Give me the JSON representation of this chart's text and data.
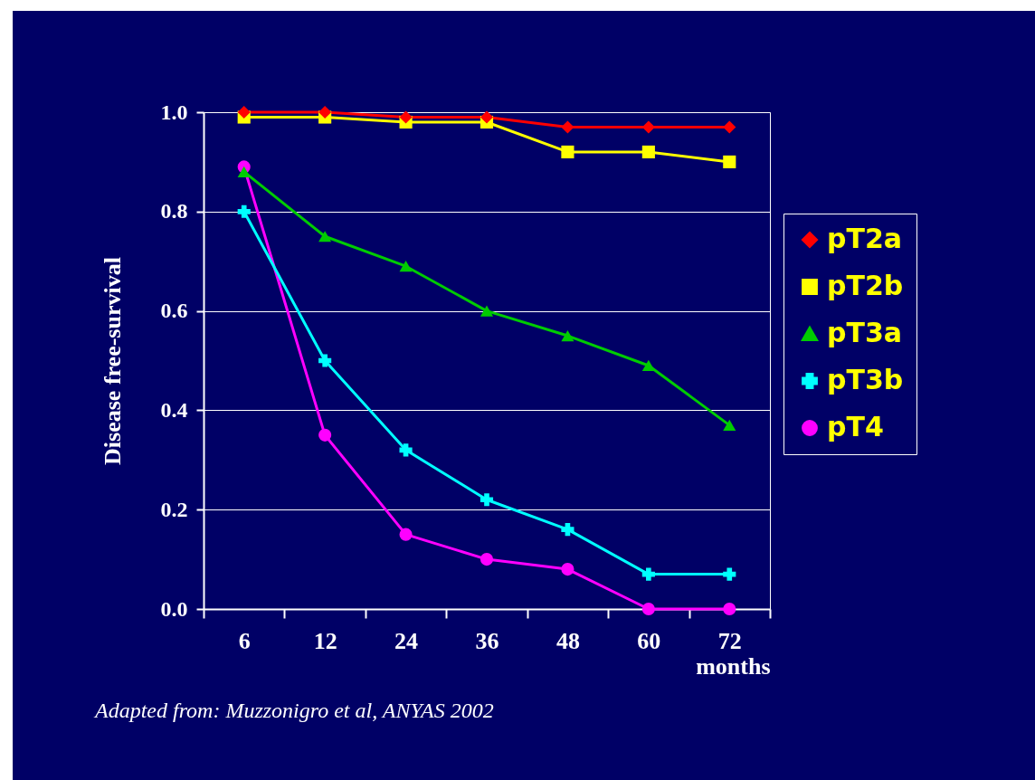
{
  "chart_data": {
    "type": "line",
    "xlabel": "months",
    "ylabel": "Disease free-survival",
    "categories": [
      "6",
      "12",
      "24",
      "36",
      "48",
      "60",
      "72"
    ],
    "series": [
      {
        "name": "pT2a",
        "color": "#ff0000",
        "marker": "diamond",
        "values": [
          1.0,
          1.0,
          0.99,
          0.99,
          0.97,
          0.97,
          0.97
        ]
      },
      {
        "name": "pT2b",
        "color": "#ffff00",
        "marker": "square",
        "values": [
          0.99,
          0.99,
          0.98,
          0.98,
          0.92,
          0.92,
          0.9
        ]
      },
      {
        "name": "pT3a",
        "color": "#00cc00",
        "marker": "triangle",
        "values": [
          0.88,
          0.75,
          0.69,
          0.6,
          0.55,
          0.49,
          0.37
        ]
      },
      {
        "name": "pT3b",
        "color": "#00ffff",
        "marker": "cross",
        "values": [
          0.8,
          0.5,
          0.32,
          0.22,
          0.16,
          0.07,
          0.07
        ]
      },
      {
        "name": "pT4",
        "color": "#ff00ff",
        "marker": "circle",
        "values": [
          0.89,
          0.35,
          0.15,
          0.1,
          0.08,
          0.0,
          0.0
        ]
      }
    ],
    "ylim": [
      0,
      1
    ],
    "yticks": [
      {
        "value": 0,
        "label": "0.0"
      },
      0.2,
      0.4,
      0.6,
      0.8,
      {
        "value": 1,
        "label": "1.0"
      }
    ],
    "grid": "y",
    "legend": "right",
    "annotations": [
      "Adapted from: Muzzonigro et al, ANYAS 2002"
    ]
  }
}
